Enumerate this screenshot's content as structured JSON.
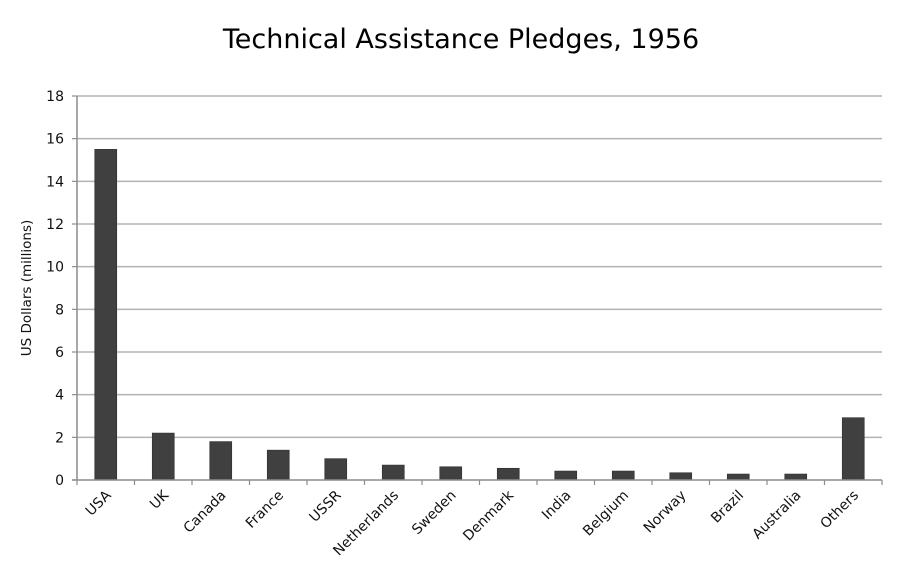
{
  "chart_data": {
    "type": "bar",
    "title": "Technical Assistance Pledges, 1956",
    "xlabel": "",
    "ylabel": "US Dollars (millions)",
    "ylim": [
      0,
      18
    ],
    "yticks": [
      0,
      2,
      4,
      6,
      8,
      10,
      12,
      14,
      16,
      18
    ],
    "grid": true,
    "legend": "none",
    "categories": [
      "USA",
      "UK",
      "Canada",
      "France",
      "USSR",
      "Netherlands",
      "Sweden",
      "Denmark",
      "India",
      "Belgium",
      "Norway",
      "Brazil",
      "Australia",
      "Others"
    ],
    "values": [
      15.5,
      2.2,
      1.8,
      1.4,
      1.0,
      0.7,
      0.62,
      0.55,
      0.42,
      0.42,
      0.34,
      0.28,
      0.28,
      2.92
    ],
    "bar_color": "#404040",
    "grid_color": "#b3b3b3",
    "axis_color": "#8c8c8c"
  }
}
